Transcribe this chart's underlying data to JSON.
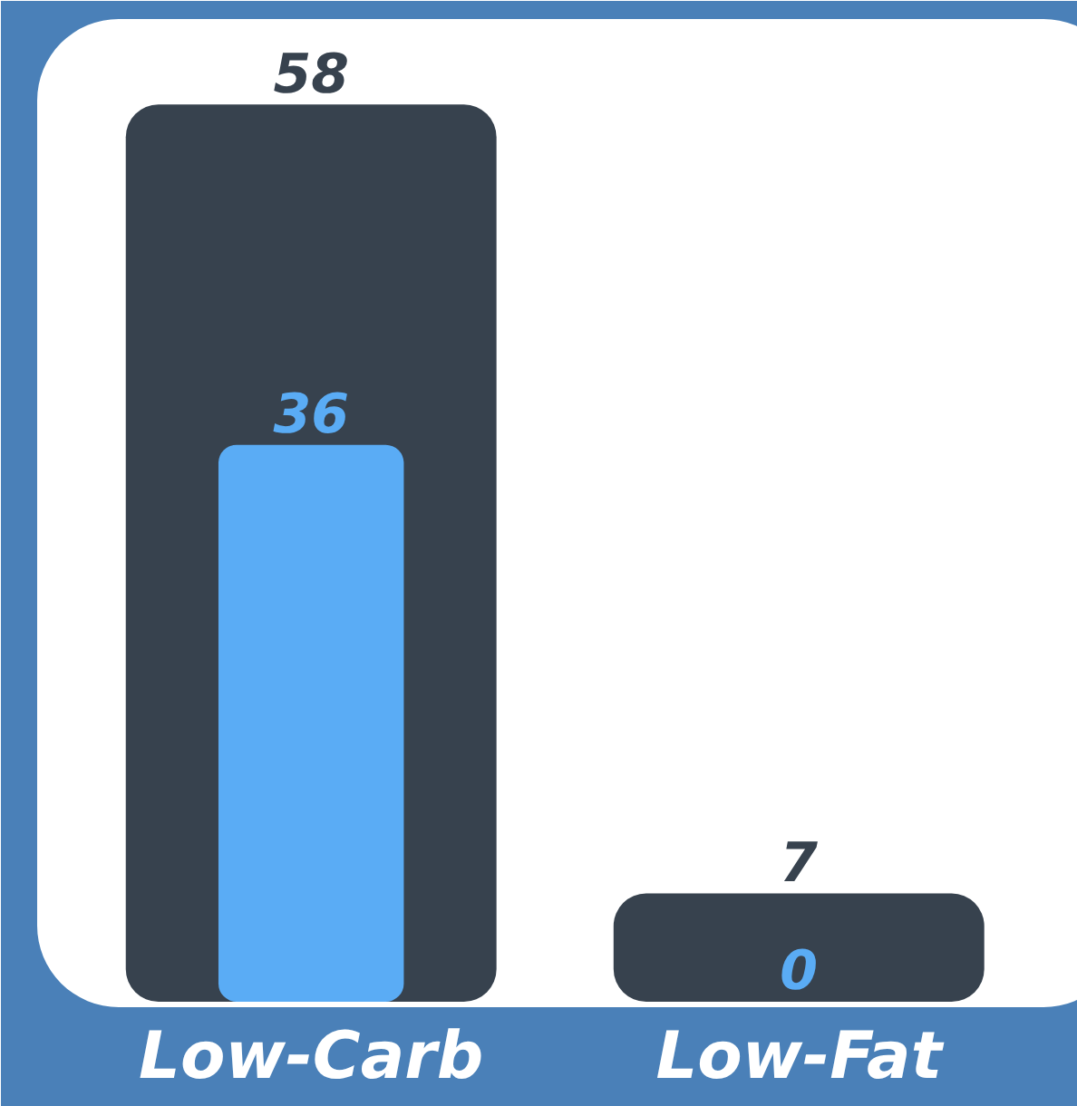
{
  "chart_data": {
    "type": "bar",
    "categories": [
      "Low-Carb",
      "Low-Fat"
    ],
    "series": [
      {
        "color": "#37424e",
        "values": [
          58,
          7
        ]
      },
      {
        "color": "#5aacf5",
        "values": [
          36,
          0
        ]
      }
    ],
    "data_labels": true
  }
}
